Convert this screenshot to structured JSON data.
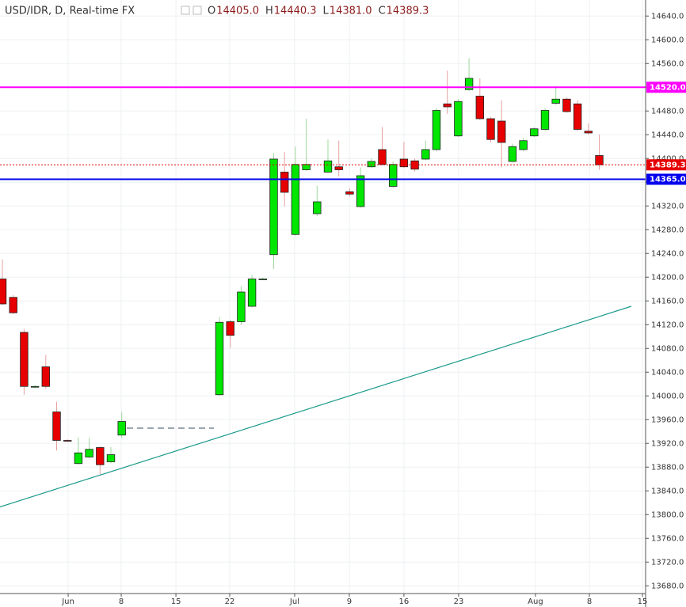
{
  "chart_data": {
    "type": "candlestick",
    "title": "USD/IDR, D, Real-time FX",
    "ohlc_header": [
      {
        "label": "O",
        "value": "14405.0"
      },
      {
        "label": "H",
        "value": "14440.3"
      },
      {
        "label": "L",
        "value": "14381.0"
      },
      {
        "label": "C",
        "value": "14389.3"
      }
    ],
    "open": [
      14197,
      14166,
      14107,
      14016,
      14049,
      13973,
      13925,
      13886,
      13897,
      13913,
      13889,
      13934,
      null,
      null,
      null,
      null,
      null,
      null,
      null,
      null,
      14002,
      14125,
      14125,
      14151,
      14197,
      14238,
      14377,
      14272,
      14381,
      14307,
      14377,
      14386,
      14344,
      14319,
      14386,
      14415,
      14353,
      14399,
      14396,
      14399,
      14415,
      14492,
      14438,
      14516,
      14505,
      14467,
      14463,
      14395,
      14415,
      14438,
      14449,
      14493,
      14500,
      14492,
      14446,
      14405
    ],
    "high": [
      14230,
      14170,
      14113,
      14018,
      14069,
      13990,
      13927,
      13930,
      13929,
      13915,
      13914,
      13973,
      null,
      null,
      null,
      null,
      null,
      null,
      null,
      null,
      14133,
      14128,
      14185,
      14204,
      14199,
      14409,
      14411,
      14420,
      14467,
      14354,
      14432,
      14430,
      14350,
      14385,
      14400,
      14453,
      14395,
      14428,
      14400,
      14430,
      14485,
      14548,
      14500,
      14569,
      14535,
      14470,
      14498,
      14425,
      14435,
      14453,
      14485,
      14522,
      14503,
      14498,
      14459,
      14440.3
    ],
    "low": [
      14153,
      14138,
      14002,
      14012,
      14012,
      13908,
      13922,
      13884,
      13895,
      13868,
      13887,
      13929,
      null,
      null,
      null,
      null,
      null,
      null,
      null,
      null,
      14000,
      14081,
      14120,
      14149,
      14195,
      14214,
      14319,
      14270,
      14379,
      14303,
      14375,
      14370,
      14336,
      14317,
      14384,
      14388,
      14350,
      14384,
      14378,
      14397,
      14412,
      14475,
      14436,
      14514,
      14465,
      14427,
      14385,
      14393,
      14412,
      14436,
      14446,
      14490,
      14477,
      14446,
      14440,
      14381
    ],
    "close": [
      14155,
      14140,
      14016,
      14016,
      14016,
      13925,
      13924,
      13904,
      13910,
      13884,
      13901,
      13957,
      null,
      null,
      null,
      null,
      null,
      null,
      null,
      null,
      14124,
      14102,
      14175,
      14197,
      14197,
      14399,
      14343,
      14390,
      14390,
      14327,
      14396,
      14381,
      14340,
      14371,
      14395,
      14390,
      14390,
      14386,
      14382,
      14415,
      14481,
      14487,
      14496,
      14535,
      14467,
      14432,
      14427,
      14420,
      14430,
      14450,
      14481,
      14500,
      14479,
      14449,
      14443,
      14389.3
    ],
    "up_color": "#00e600",
    "down_color": "#e60000",
    "xlim": [
      -0.22,
      59.27
    ],
    "xticks": [
      {
        "value": 6.06,
        "label": "Jun"
      },
      {
        "value": 10.95,
        "label": "8"
      },
      {
        "value": 15.99,
        "label": "15"
      },
      {
        "value": 20.95,
        "label": "22"
      },
      {
        "value": 26.93,
        "label": "Jul"
      },
      {
        "value": 31.97,
        "label": "9"
      },
      {
        "value": 37.0,
        "label": "16"
      },
      {
        "value": 42.04,
        "label": "23"
      },
      {
        "value": 49.12,
        "label": "Aug"
      },
      {
        "value": 54.09,
        "label": "8"
      },
      {
        "value": 58.98,
        "label": "15"
      }
    ],
    "ylim": [
      13667,
      14667
    ],
    "yticks": [
      {
        "value": 13680,
        "label": "13680.0"
      },
      {
        "value": 13720,
        "label": "13720.0"
      },
      {
        "value": 13760,
        "label": "13760.0"
      },
      {
        "value": 13800,
        "label": "13800.0"
      },
      {
        "value": 13840,
        "label": "13840.0"
      },
      {
        "value": 13880,
        "label": "13880.0"
      },
      {
        "value": 13920,
        "label": "13920.0"
      },
      {
        "value": 13960,
        "label": "13960.0"
      },
      {
        "value": 14000,
        "label": "14000.0"
      },
      {
        "value": 14040,
        "label": "14040.0"
      },
      {
        "value": 14080,
        "label": "14080.0"
      },
      {
        "value": 14120,
        "label": "14120.0"
      },
      {
        "value": 14160,
        "label": "14160.0"
      },
      {
        "value": 14200,
        "label": "14200.0"
      },
      {
        "value": 14240,
        "label": "14240.0"
      },
      {
        "value": 14280,
        "label": "14280.0"
      },
      {
        "value": 14320,
        "label": "14320.0"
      },
      {
        "value": 14360,
        "label": "14360.0"
      },
      {
        "value": 14400,
        "label": "14400.0"
      },
      {
        "value": 14440,
        "label": "14440.0"
      },
      {
        "value": 14480,
        "label": "14480.0"
      },
      {
        "value": 14520,
        "label": "14520.0"
      },
      {
        "value": 14560,
        "label": "14560.0"
      },
      {
        "value": 14600,
        "label": "14600.0"
      },
      {
        "value": 14640,
        "label": "14640.0"
      }
    ],
    "grid": true,
    "price_lines": [
      {
        "value": 14520,
        "label": "14520.0",
        "color": "#ff00ff",
        "style": "solid"
      },
      {
        "value": 14365,
        "label": "14365.0",
        "color": "#0000ee",
        "style": "solid"
      },
      {
        "value": 14389.3,
        "label": "14389.3",
        "color": "#e60000",
        "style": "dotted"
      }
    ],
    "trendline": {
      "x": [
        -0.22,
        57.96
      ],
      "y": [
        13813,
        14151
      ],
      "color": "#1a9a8a"
    }
  }
}
